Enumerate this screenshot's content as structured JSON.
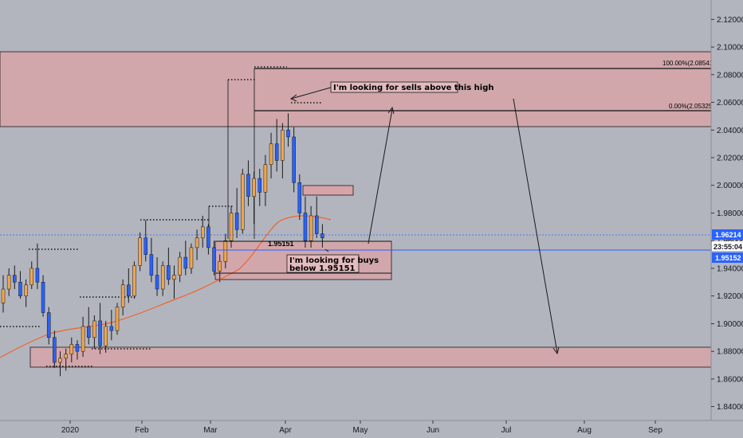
{
  "chart_data": {
    "type": "candlestick",
    "symbol_quote_currency": "",
    "y_range": [
      1.83,
      2.134
    ],
    "price_ticks": [
      "2.12000",
      "2.10000",
      "2.08000",
      "2.06000",
      "2.04000",
      "2.02000",
      "2.00000",
      "1.98000",
      "1.96000",
      "1.94000",
      "1.92000",
      "1.90000",
      "1.88000",
      "1.86000",
      "1.84000"
    ],
    "x_labels": [
      "2020",
      "Feb",
      "Mar",
      "Apr",
      "May",
      "Jun",
      "Jul",
      "Aug",
      "Sep"
    ],
    "current_price": "1.96214",
    "countdown": "23:55:04",
    "level_price": "1.95152",
    "level_label": "1.95151",
    "fib_labels": [
      "100.00%(2.08541)",
      "0.00%(2.05325)"
    ],
    "annotations": {
      "sell_note": "I'm looking for sells above this high",
      "buy_note_line1": "I'm looking for buys",
      "buy_note_line2": "below 1.95151"
    },
    "colors": {
      "background": "#b2b5be",
      "bull_candle": "#f0a64f",
      "bear_candle": "#2962ff",
      "zone_fill": "#d6a4a8",
      "moving_average": "#f0642a",
      "level_line": "#2962ff"
    },
    "candles": [
      [
        1.915,
        1.935,
        1.908,
        1.925
      ],
      [
        1.925,
        1.94,
        1.92,
        1.935
      ],
      [
        1.935,
        1.942,
        1.925,
        1.93
      ],
      [
        1.93,
        1.938,
        1.918,
        1.92
      ],
      [
        1.92,
        1.932,
        1.912,
        1.928
      ],
      [
        1.928,
        1.945,
        1.925,
        1.94
      ],
      [
        1.94,
        1.958,
        1.925,
        1.93
      ],
      [
        1.93,
        1.935,
        1.905,
        1.908
      ],
      [
        1.908,
        1.912,
        1.885,
        1.89
      ],
      [
        1.89,
        1.895,
        1.868,
        1.872
      ],
      [
        1.872,
        1.88,
        1.862,
        1.875
      ],
      [
        1.875,
        1.882,
        1.866,
        1.878
      ],
      [
        1.878,
        1.89,
        1.872,
        1.885
      ],
      [
        1.885,
        1.888,
        1.874,
        1.88
      ],
      [
        1.88,
        1.905,
        1.876,
        1.898
      ],
      [
        1.898,
        1.912,
        1.885,
        1.89
      ],
      [
        1.89,
        1.906,
        1.882,
        1.902
      ],
      [
        1.902,
        1.915,
        1.878,
        1.884
      ],
      [
        1.884,
        1.902,
        1.879,
        1.898
      ],
      [
        1.898,
        1.91,
        1.888,
        1.895
      ],
      [
        1.895,
        1.915,
        1.892,
        1.912
      ],
      [
        1.912,
        1.932,
        1.906,
        1.928
      ],
      [
        1.928,
        1.94,
        1.915,
        1.92
      ],
      [
        1.92,
        1.945,
        1.918,
        1.942
      ],
      [
        1.942,
        1.966,
        1.938,
        1.962
      ],
      [
        1.962,
        1.975,
        1.945,
        1.95
      ],
      [
        1.95,
        1.962,
        1.93,
        1.935
      ],
      [
        1.935,
        1.948,
        1.92,
        1.925
      ],
      [
        1.925,
        1.945,
        1.92,
        1.942
      ],
      [
        1.942,
        1.955,
        1.928,
        1.932
      ],
      [
        1.932,
        1.942,
        1.918,
        1.935
      ],
      [
        1.935,
        1.952,
        1.93,
        1.948
      ],
      [
        1.948,
        1.96,
        1.935,
        1.94
      ],
      [
        1.94,
        1.958,
        1.936,
        1.955
      ],
      [
        1.955,
        1.968,
        1.946,
        1.962
      ],
      [
        1.962,
        1.978,
        1.955,
        1.97
      ],
      [
        1.97,
        1.972,
        1.95,
        1.955
      ],
      [
        1.955,
        1.96,
        1.935,
        1.938
      ],
      [
        1.938,
        1.95,
        1.93,
        1.945
      ],
      [
        1.945,
        1.965,
        1.94,
        1.96
      ],
      [
        1.96,
        1.985,
        1.955,
        1.98
      ],
      [
        1.98,
        1.998,
        1.962,
        1.968
      ],
      [
        1.968,
        2.012,
        1.965,
        2.008
      ],
      [
        2.008,
        2.018,
        1.985,
        1.992
      ],
      [
        1.992,
        2.01,
        1.972,
        2.005
      ],
      [
        2.005,
        2.012,
        1.985,
        1.995
      ],
      [
        1.995,
        2.022,
        1.985,
        2.015
      ],
      [
        2.015,
        2.038,
        2.005,
        2.03
      ],
      [
        2.03,
        2.048,
        2.01,
        2.018
      ],
      [
        2.018,
        2.045,
        2.005,
        2.04
      ],
      [
        2.04,
        2.052,
        2.028,
        2.035
      ],
      [
        2.035,
        2.042,
        1.995,
        2.002
      ],
      [
        2.002,
        2.008,
        1.975,
        1.98
      ],
      [
        1.98,
        1.992,
        1.955,
        1.96
      ],
      [
        1.96,
        1.985,
        1.955,
        1.978
      ],
      [
        1.978,
        1.992,
        1.962,
        1.965
      ],
      [
        1.965,
        1.972,
        1.955,
        1.962
      ]
    ]
  }
}
